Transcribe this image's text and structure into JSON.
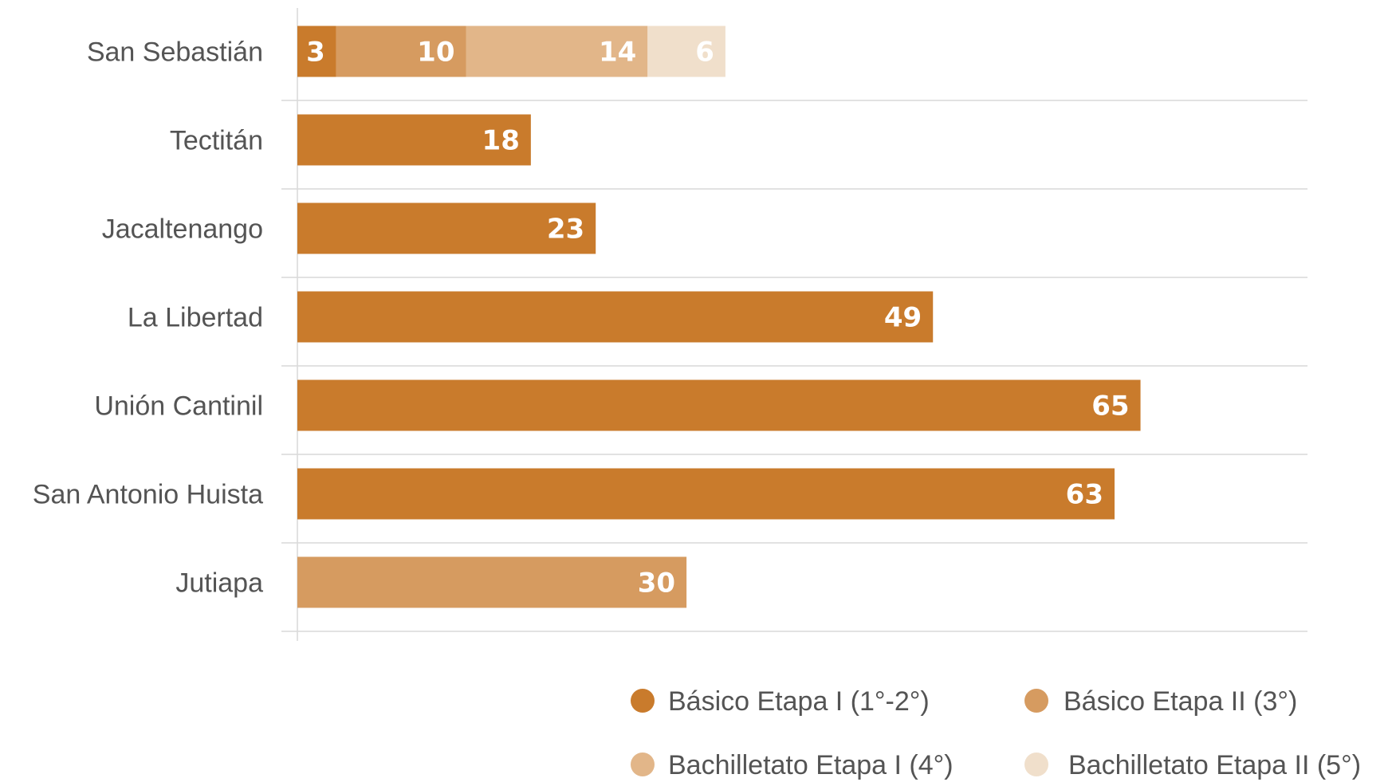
{
  "chart_data": {
    "type": "bar",
    "orientation": "horizontal",
    "stacked": true,
    "title": "",
    "xlabel": "",
    "ylabel": "",
    "xlim": [
      0,
      70
    ],
    "grid": true,
    "legend_position": "bottom-right",
    "categories": [
      "San Sebastián",
      "Tectitán",
      "Jacaltenango",
      "La Libertad",
      "Unión Cantinil",
      "San Antonio Huista",
      "Jutiapa"
    ],
    "series": [
      {
        "name": "Básico Etapa I (1°-2°)",
        "color": "#C97B2C",
        "values": [
          3,
          18,
          23,
          49,
          65,
          63,
          0
        ]
      },
      {
        "name": "Básico Etapa II (3°)",
        "color": "#D69B60",
        "values": [
          10,
          0,
          0,
          0,
          0,
          0,
          30
        ]
      },
      {
        "name": "Bachilletato Etapa I (4°)",
        "color": "#E2B689",
        "values": [
          14,
          0,
          0,
          0,
          0,
          0,
          0
        ]
      },
      {
        "name": "Bachilletato Etapa II (5°)",
        "color": "#F0DFCB",
        "values": [
          6,
          0,
          0,
          0,
          0,
          0,
          0
        ]
      }
    ]
  }
}
